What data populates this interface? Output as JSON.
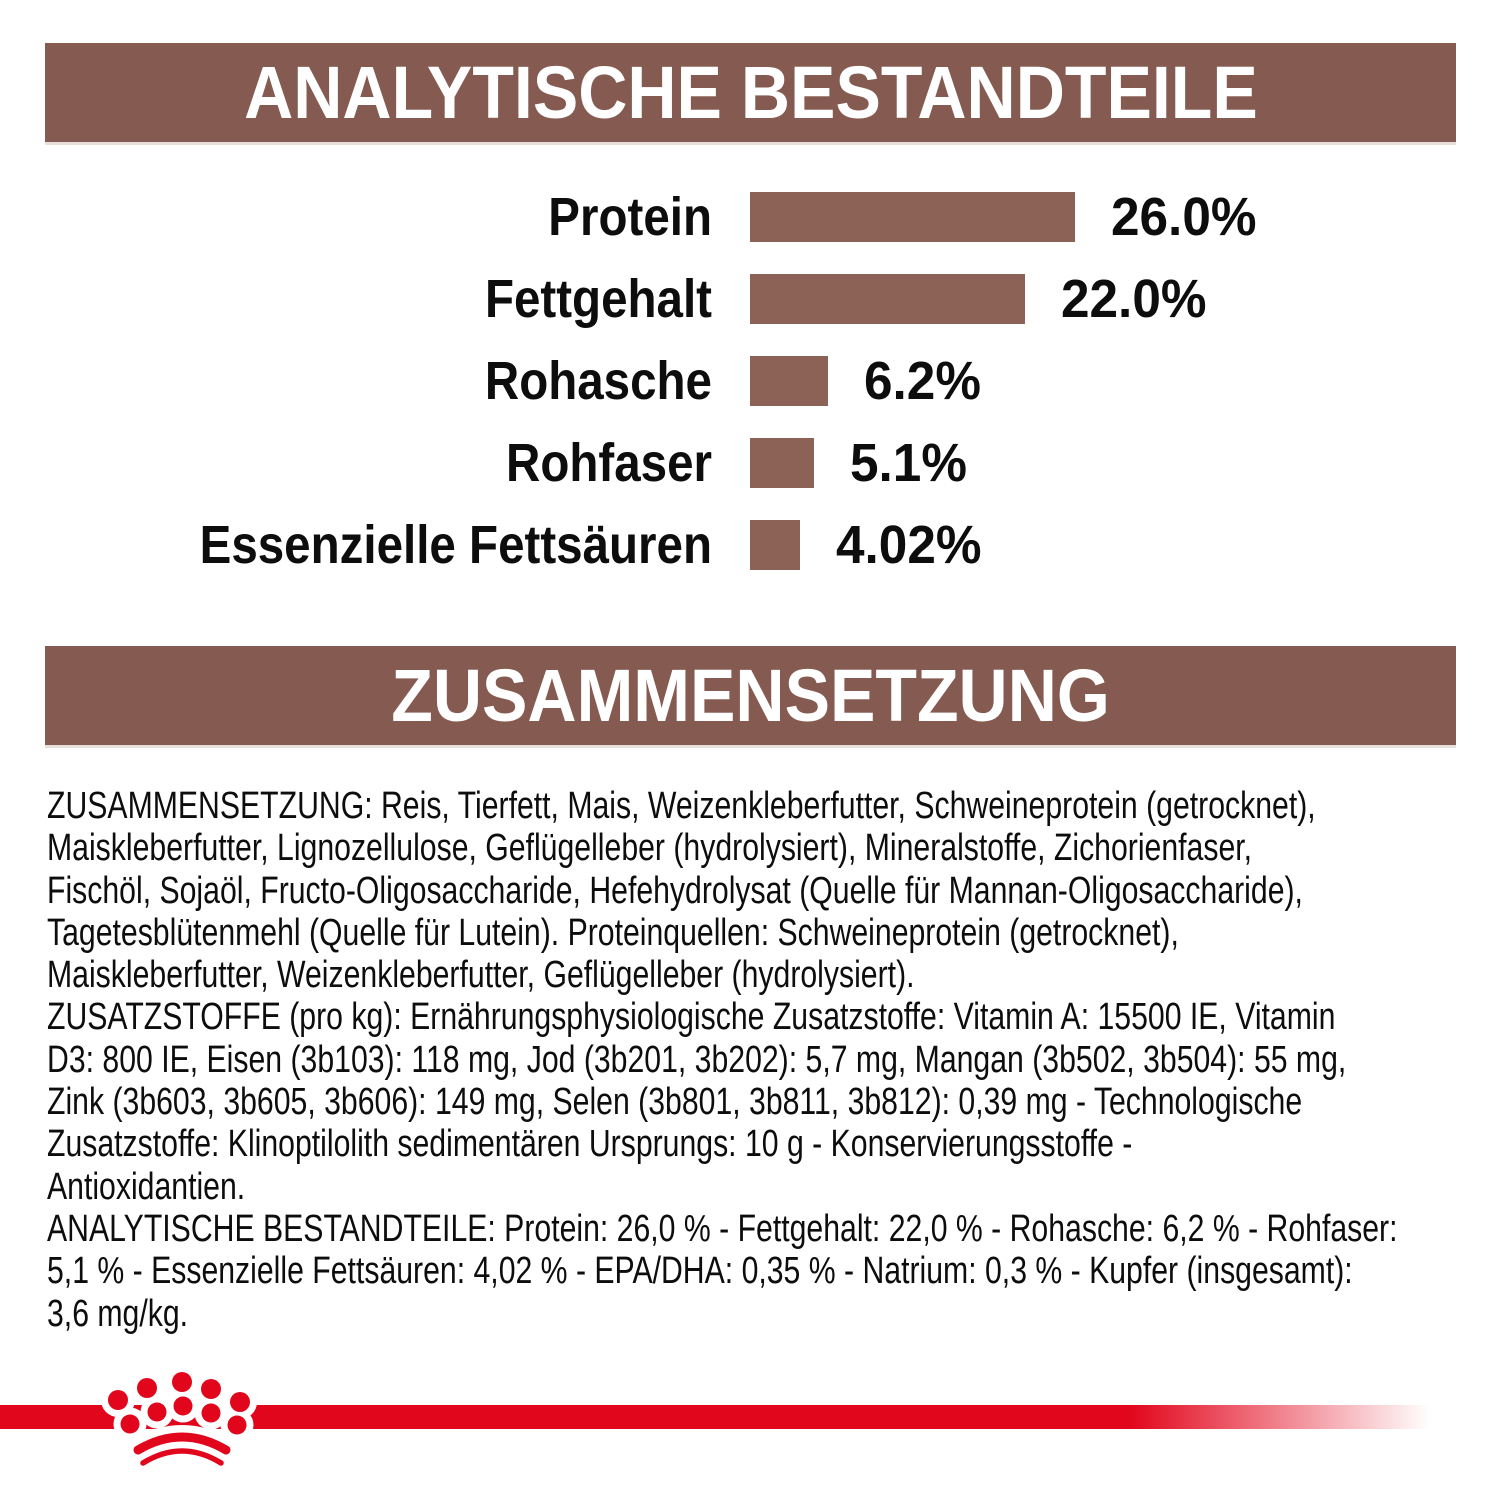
{
  "analytical_section": {
    "title": "ANALYTISCHE BESTANDTEILE"
  },
  "chart_data": {
    "type": "bar",
    "orientation": "horizontal",
    "title": "ANALYTISCHE BESTANDTEILE",
    "categories": [
      "Protein",
      "Fettgehalt",
      "Rohasche",
      "Rohfaser",
      "Essenzielle Fettsäuren"
    ],
    "values": [
      26.0,
      22.0,
      6.2,
      5.1,
      4.02
    ],
    "value_labels": [
      "26.0%",
      "22.0%",
      "6.2%",
      "5.1%",
      "4.02%"
    ],
    "xlim": [
      0,
      26
    ],
    "grid": false,
    "value_label_position": "right-of-bar",
    "bar_color": "#8C6156",
    "rows": [
      {
        "label": "Protein",
        "percent": 26.0,
        "value_label": "26.0%"
      },
      {
        "label": "Fettgehalt",
        "percent": 22.0,
        "value_label": "22.0%"
      },
      {
        "label": "Rohasche",
        "percent": 6.2,
        "value_label": "6.2%"
      },
      {
        "label": "Rohfaser",
        "percent": 5.1,
        "value_label": "5.1%"
      },
      {
        "label": "Essenzielle Fettsäuren",
        "percent": 4.02,
        "value_label": "4.02%"
      }
    ]
  },
  "composition_section": {
    "title": "ZUSAMMENSETZUNG",
    "lines": [
      "ZUSAMMENSETZUNG: Reis, Tierfett, Mais, Weizenkleberfutter, Schweineprotein (getrocknet),",
      "Maiskleberfutter, Lignozellulose, Geflügelleber (hydrolysiert), Mineralstoffe, Zichorienfaser,",
      "Fischöl, Sojaöl, Fructo-Oligosaccharide, Hefehydrolysat (Quelle für Mannan-Oligosaccharide),",
      "Tagetesblütenmehl (Quelle für Lutein). Proteinquellen: Schweineprotein (getrocknet),",
      "Maiskleberfutter, Weizenkleberfutter, Geflügelleber (hydrolysiert).",
      "ZUSATZSTOFFE (pro kg): Ernährungsphysiologische Zusatzstoffe: Vitamin A: 15500 IE, Vitamin",
      "D3: 800 IE, Eisen (3b103): 118 mg, Jod (3b201, 3b202): 5,7 mg, Mangan (3b502, 3b504): 55 mg,",
      "Zink (3b603, 3b605, 3b606): 149 mg, Selen (3b801, 3b811, 3b812): 0,39 mg - Technologische",
      "Zusatzstoffe: Klinoptilolith sedimentären Ursprungs: 10 g - Konservierungsstoffe -",
      "Antioxidantien.",
      "ANALYTISCHE BESTANDTEILE: Protein: 26,0 % - Fettgehalt: 22,0 % - Rohasche: 6,2 % - Rohfaser:",
      "5,1 % - Essenzielle Fettsäuren: 4,02 % - EPA/DHA: 0,35 % - Natrium: 0,3 % - Kupfer (insgesamt):",
      "3,6 mg/kg."
    ]
  },
  "footer": {
    "logo": "royal-canin-crown"
  },
  "colors": {
    "header_brown": "#855A50",
    "bar_brown": "#8C6156",
    "brand_red": "#E2061C",
    "text_black": "#0d0d0d",
    "background": "#ffffff"
  }
}
